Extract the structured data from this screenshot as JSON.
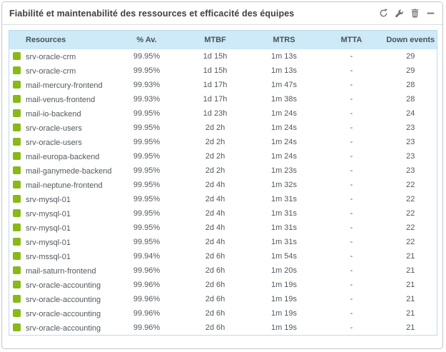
{
  "widget": {
    "title": "Fiabilité et maintenabilité des ressources et efficacité des équipes",
    "toolbar": [
      {
        "name": "refresh-icon"
      },
      {
        "name": "wrench-icon"
      },
      {
        "name": "trash-icon"
      },
      {
        "name": "collapse-icon"
      }
    ]
  },
  "colors": {
    "status_ok": "#88b917",
    "header_bg": "#cee9f8",
    "table_border": "#badbee",
    "icon_gray": "#757575"
  },
  "table": {
    "columns": [
      "Resources",
      "% Av.",
      "MTBF",
      "MTRS",
      "MTTA",
      "Down events"
    ],
    "rows": [
      {
        "resource": "srv-oracle-crm",
        "availability": "99.95%",
        "mtbf": "1d 15h",
        "mtrs": "1m 13s",
        "mtta": "-",
        "down_events": "29"
      },
      {
        "resource": "srv-oracle-crm",
        "availability": "99.95%",
        "mtbf": "1d 15h",
        "mtrs": "1m 13s",
        "mtta": "-",
        "down_events": "29"
      },
      {
        "resource": "mail-mercury-frontend",
        "availability": "99.93%",
        "mtbf": "1d 17h",
        "mtrs": "1m 47s",
        "mtta": "-",
        "down_events": "28"
      },
      {
        "resource": "mail-venus-frontend",
        "availability": "99.93%",
        "mtbf": "1d 17h",
        "mtrs": "1m 38s",
        "mtta": "-",
        "down_events": "28"
      },
      {
        "resource": "mail-io-backend",
        "availability": "99.95%",
        "mtbf": "1d 23h",
        "mtrs": "1m 24s",
        "mtta": "-",
        "down_events": "24"
      },
      {
        "resource": "srv-oracle-users",
        "availability": "99.95%",
        "mtbf": "2d 2h",
        "mtrs": "1m 24s",
        "mtta": "-",
        "down_events": "23"
      },
      {
        "resource": "srv-oracle-users",
        "availability": "99.95%",
        "mtbf": "2d 2h",
        "mtrs": "1m 24s",
        "mtta": "-",
        "down_events": "23"
      },
      {
        "resource": "mail-europa-backend",
        "availability": "99.95%",
        "mtbf": "2d 2h",
        "mtrs": "1m 24s",
        "mtta": "-",
        "down_events": "23"
      },
      {
        "resource": "mail-ganymede-backend",
        "availability": "99.95%",
        "mtbf": "2d 2h",
        "mtrs": "1m 23s",
        "mtta": "-",
        "down_events": "23"
      },
      {
        "resource": "mail-neptune-frontend",
        "availability": "99.95%",
        "mtbf": "2d 4h",
        "mtrs": "1m 32s",
        "mtta": "-",
        "down_events": "22"
      },
      {
        "resource": "srv-mysql-01",
        "availability": "99.95%",
        "mtbf": "2d 4h",
        "mtrs": "1m 31s",
        "mtta": "-",
        "down_events": "22"
      },
      {
        "resource": "srv-mysql-01",
        "availability": "99.95%",
        "mtbf": "2d 4h",
        "mtrs": "1m 31s",
        "mtta": "-",
        "down_events": "22"
      },
      {
        "resource": "srv-mysql-01",
        "availability": "99.95%",
        "mtbf": "2d 4h",
        "mtrs": "1m 31s",
        "mtta": "-",
        "down_events": "22"
      },
      {
        "resource": "srv-mysql-01",
        "availability": "99.95%",
        "mtbf": "2d 4h",
        "mtrs": "1m 31s",
        "mtta": "-",
        "down_events": "22"
      },
      {
        "resource": "srv-mssql-01",
        "availability": "99.94%",
        "mtbf": "2d 6h",
        "mtrs": "1m 54s",
        "mtta": "-",
        "down_events": "21"
      },
      {
        "resource": "mail-saturn-frontend",
        "availability": "99.96%",
        "mtbf": "2d 6h",
        "mtrs": "1m 20s",
        "mtta": "-",
        "down_events": "21"
      },
      {
        "resource": "srv-oracle-accounting",
        "availability": "99.96%",
        "mtbf": "2d 6h",
        "mtrs": "1m 19s",
        "mtta": "-",
        "down_events": "21"
      },
      {
        "resource": "srv-oracle-accounting",
        "availability": "99.96%",
        "mtbf": "2d 6h",
        "mtrs": "1m 19s",
        "mtta": "-",
        "down_events": "21"
      },
      {
        "resource": "srv-oracle-accounting",
        "availability": "99.96%",
        "mtbf": "2d 6h",
        "mtrs": "1m 19s",
        "mtta": "-",
        "down_events": "21"
      },
      {
        "resource": "srv-oracle-accounting",
        "availability": "99.96%",
        "mtbf": "2d 6h",
        "mtrs": "1m 19s",
        "mtta": "-",
        "down_events": "21"
      }
    ]
  }
}
